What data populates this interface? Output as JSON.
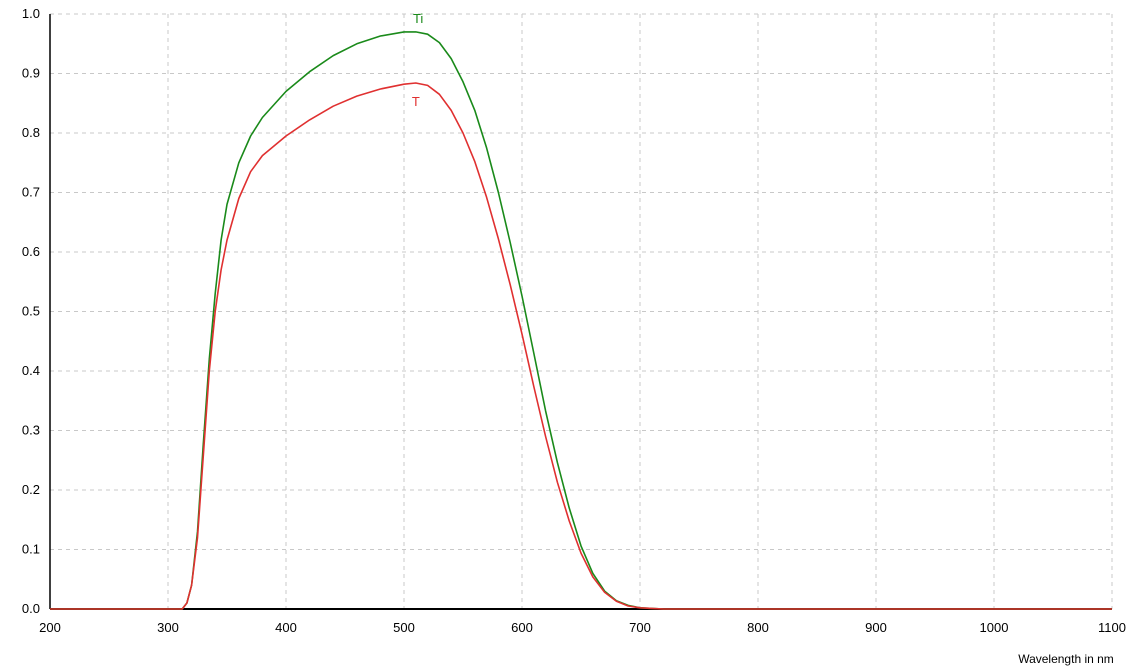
{
  "chart_data": {
    "type": "line",
    "title": "",
    "xlabel": "Wavelength in nm",
    "ylabel": "",
    "xlim": [
      200,
      1100
    ],
    "ylim": [
      0.0,
      1.0
    ],
    "grid": true,
    "legend": "none",
    "x_ticks": [
      200,
      300,
      400,
      500,
      600,
      700,
      800,
      900,
      1000,
      1100
    ],
    "x_tick_labels": [
      "200",
      "300",
      "400",
      "500",
      "600",
      "700",
      "800",
      "900",
      "1000",
      "1100"
    ],
    "y_ticks": [
      0.0,
      0.1,
      0.2,
      0.3,
      0.4,
      0.5,
      0.6,
      0.7,
      0.8,
      0.9,
      1.0
    ],
    "y_tick_labels": [
      "0.0",
      "0.1",
      "0.2",
      "0.3",
      "0.4",
      "0.5",
      "0.6",
      "0.7",
      "0.8",
      "0.9",
      "1.0"
    ],
    "series": [
      {
        "name": "Ti",
        "color": "#1a8a1a",
        "x": [
          200,
          312,
          316,
          320,
          325,
          330,
          335,
          340,
          345,
          350,
          360,
          370,
          380,
          400,
          420,
          440,
          460,
          480,
          500,
          510,
          520,
          530,
          540,
          550,
          560,
          570,
          580,
          590,
          600,
          610,
          620,
          630,
          640,
          650,
          660,
          670,
          680,
          690,
          700,
          710,
          720,
          730,
          800,
          900,
          1000,
          1100
        ],
        "y": [
          0.0,
          0.0,
          0.01,
          0.04,
          0.13,
          0.28,
          0.42,
          0.53,
          0.62,
          0.68,
          0.75,
          0.795,
          0.826,
          0.87,
          0.903,
          0.93,
          0.95,
          0.963,
          0.97,
          0.97,
          0.966,
          0.952,
          0.925,
          0.886,
          0.838,
          0.775,
          0.7,
          0.616,
          0.526,
          0.43,
          0.333,
          0.246,
          0.17,
          0.106,
          0.06,
          0.03,
          0.014,
          0.006,
          0.002,
          0.001,
          0.0,
          0.0,
          0.0,
          0.0,
          0.0,
          0.0
        ]
      },
      {
        "name": "T",
        "color": "#e03030",
        "x": [
          200,
          312,
          316,
          320,
          325,
          330,
          335,
          340,
          345,
          350,
          360,
          370,
          380,
          400,
          420,
          440,
          460,
          480,
          500,
          510,
          520,
          530,
          540,
          550,
          560,
          570,
          580,
          590,
          600,
          610,
          620,
          630,
          640,
          650,
          660,
          670,
          680,
          690,
          700,
          710,
          720,
          730,
          800,
          900,
          1000,
          1100
        ],
        "y": [
          0.0,
          0.0,
          0.01,
          0.04,
          0.12,
          0.26,
          0.4,
          0.5,
          0.57,
          0.62,
          0.69,
          0.735,
          0.762,
          0.795,
          0.822,
          0.845,
          0.862,
          0.874,
          0.882,
          0.884,
          0.88,
          0.865,
          0.838,
          0.8,
          0.752,
          0.692,
          0.622,
          0.545,
          0.462,
          0.374,
          0.29,
          0.213,
          0.148,
          0.094,
          0.054,
          0.028,
          0.013,
          0.005,
          0.002,
          0.001,
          0.0,
          0.0,
          0.0,
          0.0,
          0.0,
          0.0
        ]
      }
    ],
    "series_labels": [
      {
        "text": "Ti",
        "x": 512,
        "y": 0.985
      },
      {
        "text": "T",
        "x": 510,
        "y": 0.845
      }
    ]
  }
}
